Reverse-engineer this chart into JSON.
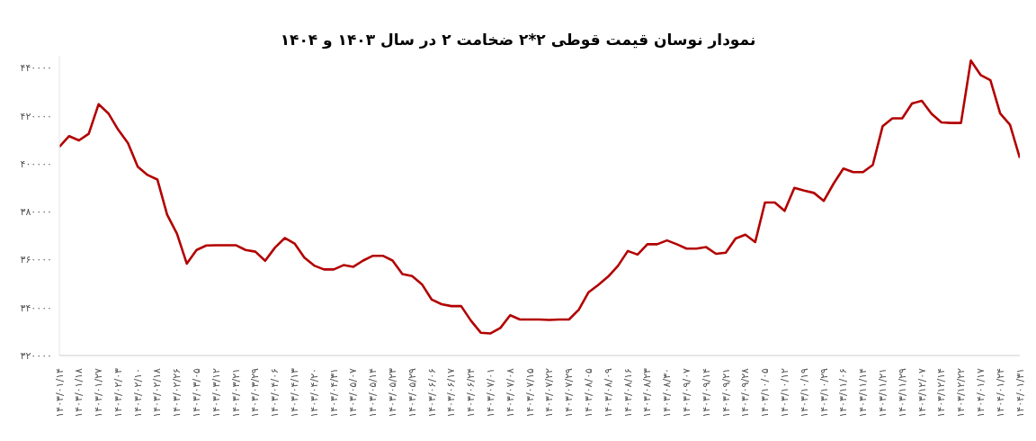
{
  "chart_data": {
    "type": "line",
    "title": "نمودار نوسان قیمت قوطی ۲*۲ ضخامت ۲ در سال ۱۴۰۳ و ۱۴۰۴",
    "categories": [
      "۱۴۰۳/۰۱/۱۴",
      null,
      "۱۴۰۳/۰۱/۱۸",
      null,
      "۱۴۰۳/۰۱/۲۷",
      null,
      "۱۴۰۳/۰۲/۰۳",
      null,
      "۱۴۰۳/۰۲/۱۰",
      null,
      "۱۴۰۳/۰۲/۱۸",
      null,
      "۱۴۰۳/۰۲/۲۶",
      null,
      "۱۴۰۳/۰۳/۰۵",
      null,
      "۱۴۰۳/۰۳/۱۲",
      null,
      "۱۴۰۳/۰۳/۲۱",
      null,
      "۱۴۰۳/۰۳/۲۹",
      null,
      "۱۴۰۳/۰۴/۰۶",
      null,
      "۱۴۰۳/۰۴/۱۳",
      null,
      "۱۴۰۳/۰۴/۲۰",
      null,
      "۱۴۰۳/۰۴/۳۱",
      null,
      "۱۴۰۳/۰۵/۰۷",
      null,
      "۱۴۰۳/۰۵/۱۴",
      null,
      "۱۴۰۳/۰۵/۲۳",
      null,
      "۱۴۰۳/۰۵/۲۹",
      null,
      "۱۴۰۳/۰۶/۰۶",
      null,
      "۱۴۰۳/۰۶/۱۷",
      null,
      "۱۴۰۳/۰۶/۲۴",
      null,
      "۱۴۰۳/۰۷/۰۱",
      null,
      "۱۴۰۳/۰۷/۰۸",
      null,
      "۱۴۰۳/۰۷/۱۵",
      null,
      "۱۴۰۳/۰۷/۲۲",
      null,
      "۱۴۰۳/۰۷/۲۹",
      null,
      "۱۴۰۳/۰۸/۰۵",
      null,
      "۱۴۰۳/۰۸/۰۹",
      null,
      "۱۴۰۳/۰۸/۱۶",
      null,
      "۱۴۰۳/۰۸/۲۳",
      null,
      "۱۴۰۳/۰۸/۳۰",
      null,
      "۱۴۰۳/۰۹/۰۷",
      null,
      "۱۴۰۳/۰۹/۱۴",
      null,
      "۱۴۰۳/۰۹/۲۱",
      null,
      "۱۴۰۳/۰۹/۲۸",
      null,
      "۱۴۰۳/۱۰/۰۵",
      null,
      "۱۴۰۳/۱۰/۱۲",
      null,
      "۱۴۰۳/۱۰/۱۹",
      null,
      "۱۴۰۳/۱۰/۲۹",
      null,
      "۱۴۰۳/۱۱/۰۶",
      null,
      "۱۴۰۳/۱۱/۱۴",
      null,
      "۱۴۰۳/۱۱/۲۱",
      null,
      "۱۴۰۳/۱۱/۲۹",
      null,
      "۱۴۰۳/۱۲/۰۷",
      null,
      "۱۴۰۳/۱۲/۱۴",
      null,
      "۱۴۰۳/۱۲/۲۲",
      null,
      "۱۴۰۴/۰۱/۱۷",
      null,
      "۱۴۰۴/۰۱/۲۴",
      null,
      "۱۴۰۴/۰۱/۳۱"
    ],
    "values": [
      407000,
      411500,
      409700,
      412500,
      424800,
      421000,
      414200,
      408600,
      398700,
      395300,
      393400,
      378700,
      370800,
      358300,
      364000,
      365900,
      366000,
      366000,
      366000,
      364000,
      363300,
      359500,
      365000,
      369000,
      366700,
      360800,
      357500,
      355900,
      355900,
      357700,
      357000,
      359600,
      361600,
      361600,
      359600,
      354000,
      353100,
      349700,
      343300,
      341400,
      340600,
      340600,
      334500,
      329500,
      329200,
      331500,
      336800,
      335000,
      335000,
      335000,
      334800,
      335000,
      335000,
      339100,
      346400,
      349500,
      352900,
      357400,
      363600,
      362100,
      366400,
      366400,
      368000,
      366400,
      364600,
      364600,
      365200,
      362400,
      362900,
      368800,
      370400,
      367300,
      383800,
      383800,
      380300,
      389900,
      388800,
      387800,
      384500,
      391700,
      398000,
      396500,
      396500,
      399500,
      415600,
      418900,
      418900,
      425100,
      426200,
      420800,
      417200,
      417000,
      417000,
      443000,
      437000,
      434800,
      420900,
      416200,
      402400
    ],
    "color": "#b30000",
    "ylim": [
      320000,
      445000
    ],
    "yticks": [
      {
        "value": 320000,
        "label": "۳۲۰۰۰۰"
      },
      {
        "value": 340000,
        "label": "۳۴۰۰۰۰"
      },
      {
        "value": 360000,
        "label": "۳۶۰۰۰۰"
      },
      {
        "value": 380000,
        "label": "۳۸۰۰۰۰"
      },
      {
        "value": 400000,
        "label": "۴۰۰۰۰۰"
      },
      {
        "value": 420000,
        "label": "۴۲۰۰۰۰"
      },
      {
        "value": 440000,
        "label": "۴۴۰۰۰۰"
      }
    ],
    "grid": false,
    "marker": "none",
    "line_style": "solid"
  }
}
